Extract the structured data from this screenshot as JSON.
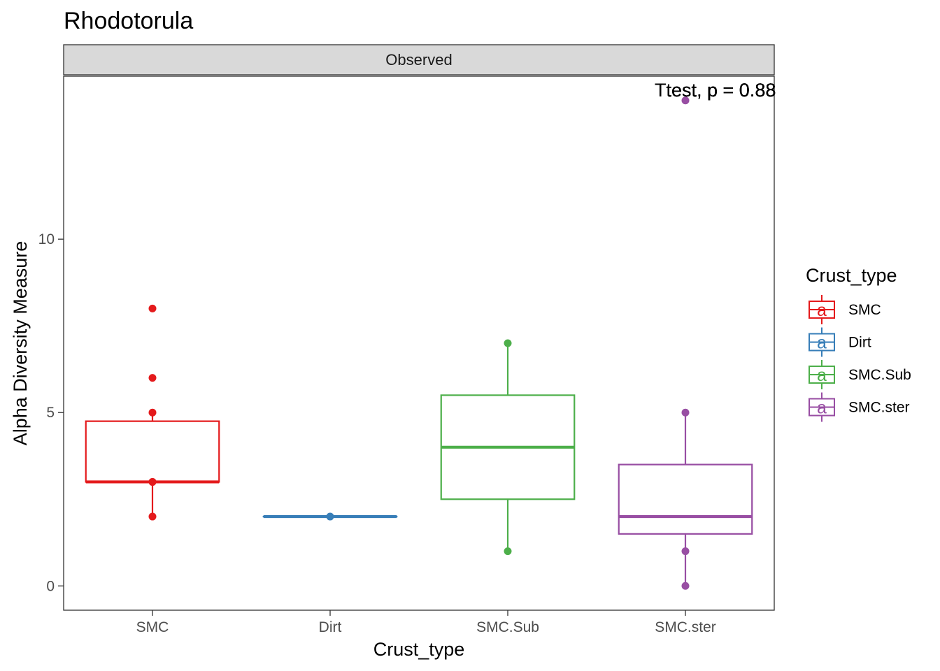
{
  "chart_data": {
    "type": "box",
    "title": "Rhodotorula",
    "facet": "Observed",
    "xlabel": "Crust_type",
    "ylabel": "Alpha Diversity Measure",
    "ylim": [
      -0.7,
      14.7
    ],
    "yticks": [
      0,
      5,
      10
    ],
    "grid": false,
    "categories": [
      "SMC",
      "Dirt",
      "SMC.Sub",
      "SMC.ster"
    ],
    "boxes": [
      {
        "category": "SMC",
        "lower": 2,
        "q1": 3,
        "median": 3,
        "q3": 4.75,
        "upper": 5,
        "color": "#E41A1C",
        "points": [
          2,
          3,
          3,
          5,
          6,
          8
        ]
      },
      {
        "category": "Dirt",
        "lower": 2,
        "q1": 2,
        "median": 2,
        "q3": 2,
        "upper": 2,
        "color": "#377EB8",
        "points": [
          2
        ]
      },
      {
        "category": "SMC.Sub",
        "lower": 1,
        "q1": 2.5,
        "median": 4,
        "q3": 5.5,
        "upper": 7,
        "color": "#4DAF4A",
        "points": [
          1,
          7
        ]
      },
      {
        "category": "SMC.ster",
        "lower": 0,
        "q1": 1.5,
        "median": 2,
        "q3": 3.5,
        "upper": 5,
        "color": "#984EA3",
        "points": [
          0,
          1,
          5,
          14
        ]
      }
    ],
    "annotation": {
      "text": "Ttest, p = 0.88",
      "y": 14.3
    },
    "legend": {
      "title": "Crust_type",
      "position": "right",
      "key_glyph": "a",
      "entries": [
        {
          "label": "SMC",
          "color": "#E41A1C"
        },
        {
          "label": "Dirt",
          "color": "#377EB8"
        },
        {
          "label": "SMC.Sub",
          "color": "#4DAF4A"
        },
        {
          "label": "SMC.ster",
          "color": "#984EA3"
        }
      ]
    }
  }
}
